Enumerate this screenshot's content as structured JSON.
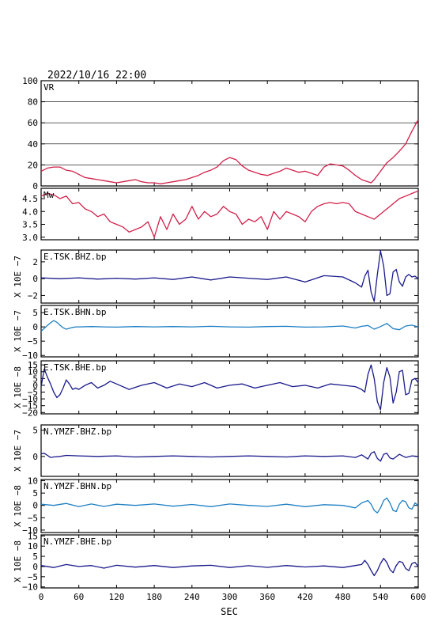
{
  "header": {
    "datetime": "2022/10/16  22:00"
  },
  "x_axis": {
    "label": "SEC",
    "range": [
      0,
      600
    ],
    "ticks": [
      0,
      60,
      120,
      180,
      240,
      300,
      360,
      420,
      480,
      540,
      600
    ],
    "tick_labels": [
      "0",
      "60",
      "120",
      "180",
      "240",
      "300",
      "360",
      "420",
      "480",
      "540",
      "600"
    ]
  },
  "chart_data": [
    {
      "type": "line",
      "panel_label": "VR",
      "exp_label": "",
      "ylim": [
        0,
        100
      ],
      "yticks": [
        0,
        20,
        40,
        60,
        80,
        100
      ],
      "ytick_labels": [
        "0",
        "20",
        "40",
        "60",
        "80",
        "100"
      ],
      "grid_y": [
        20,
        40,
        60,
        80
      ],
      "color": "#d2204a",
      "series": [
        {
          "x": [
            0,
            10,
            20,
            30,
            40,
            50,
            60,
            70,
            80,
            90,
            100,
            110,
            120,
            130,
            140,
            150,
            160,
            170,
            180,
            190,
            200,
            210,
            220,
            230,
            240,
            250,
            260,
            270,
            280,
            290,
            300,
            310,
            320,
            330,
            340,
            350,
            360,
            370,
            380,
            390,
            400,
            410,
            420,
            430,
            440,
            450,
            460,
            470,
            480,
            490,
            500,
            510,
            520,
            525,
            530,
            540,
            550,
            560,
            570,
            580,
            590,
            600
          ],
          "y": [
            14,
            17,
            18,
            18,
            15,
            14,
            11,
            8,
            7,
            6,
            5,
            4,
            3,
            4,
            5,
            6,
            4,
            3,
            3,
            2,
            3,
            4,
            5,
            6,
            8,
            10,
            13,
            15,
            18,
            24,
            27,
            25,
            19,
            15,
            13,
            11,
            10,
            12,
            14,
            17,
            15,
            13,
            14,
            12,
            10,
            18,
            21,
            20,
            19,
            15,
            10,
            6,
            4,
            3,
            6,
            14,
            22,
            27,
            33,
            40,
            52,
            63
          ]
        }
      ]
    },
    {
      "type": "line",
      "panel_label": "Mw",
      "exp_label": "",
      "ylim": [
        2.9,
        4.9
      ],
      "yticks": [
        3.0,
        3.5,
        4.0,
        4.5
      ],
      "ytick_labels": [
        "3.0",
        "3.5",
        "4.0",
        "4.5"
      ],
      "color": "#d2204a",
      "series": [
        {
          "x": [
            0,
            10,
            20,
            30,
            40,
            50,
            60,
            70,
            80,
            90,
            100,
            110,
            120,
            130,
            140,
            150,
            160,
            170,
            180,
            190,
            200,
            210,
            220,
            230,
            240,
            250,
            260,
            270,
            280,
            290,
            300,
            310,
            320,
            330,
            340,
            350,
            360,
            370,
            380,
            390,
            400,
            410,
            420,
            430,
            440,
            450,
            460,
            470,
            480,
            490,
            500,
            510,
            520,
            530,
            540,
            550,
            560,
            570,
            580,
            590,
            600
          ],
          "y": [
            4.6,
            4.7,
            4.65,
            4.5,
            4.6,
            4.3,
            4.35,
            4.1,
            4.0,
            3.8,
            3.9,
            3.6,
            3.5,
            3.4,
            3.2,
            3.3,
            3.4,
            3.6,
            3.0,
            3.8,
            3.3,
            3.9,
            3.5,
            3.7,
            4.2,
            3.7,
            4.0,
            3.8,
            3.9,
            4.2,
            4.0,
            3.9,
            3.5,
            3.7,
            3.6,
            3.8,
            3.3,
            4.0,
            3.7,
            4.0,
            3.9,
            3.8,
            3.6,
            4.0,
            4.2,
            4.3,
            4.35,
            4.3,
            4.35,
            4.3,
            4.0,
            3.9,
            3.8,
            3.7,
            3.9,
            4.1,
            4.3,
            4.5,
            4.6,
            4.7,
            4.8
          ]
        }
      ]
    },
    {
      "type": "line",
      "panel_label": "E.TSK.BHZ.bp",
      "exp_label": "X 10E −7",
      "ylim": [
        -2.9,
        3.4
      ],
      "yticks": [
        -2,
        0,
        2
      ],
      "ytick_labels": [
        "−2",
        "0",
        "2"
      ],
      "color": "#1a1a8c",
      "series": [
        {
          "x": [
            0,
            30,
            60,
            90,
            120,
            150,
            180,
            210,
            240,
            270,
            300,
            330,
            360,
            390,
            420,
            450,
            480,
            500,
            510,
            515,
            520,
            525,
            530,
            535,
            540,
            545,
            550,
            555,
            560,
            565,
            570,
            575,
            580,
            585,
            590,
            595,
            600
          ],
          "y": [
            0.1,
            0.0,
            0.1,
            -0.05,
            0.05,
            -0.05,
            0.1,
            -0.1,
            0.2,
            -0.15,
            0.2,
            0.05,
            -0.1,
            0.2,
            -0.4,
            0.35,
            0.2,
            -0.5,
            -1.0,
            0.3,
            1.0,
            -1.6,
            -2.7,
            0.5,
            3.3,
            1.5,
            -2.0,
            -1.8,
            0.8,
            1.1,
            -0.4,
            -0.9,
            0.2,
            0.5,
            0.2,
            0.3,
            0.0
          ]
        }
      ]
    },
    {
      "type": "line",
      "panel_label": "E.TSK.BHN.bp",
      "exp_label": "X 10E −7",
      "ylim": [
        -10.5,
        7.5
      ],
      "yticks": [
        -10,
        -5,
        0,
        5
      ],
      "ytick_labels": [
        "−10",
        "−5",
        "0",
        "5"
      ],
      "color": "#1e7fc4",
      "series": [
        {
          "x": [
            0,
            5,
            10,
            15,
            20,
            25,
            30,
            35,
            40,
            45,
            50,
            55,
            60,
            80,
            100,
            120,
            150,
            180,
            210,
            240,
            270,
            300,
            330,
            360,
            390,
            420,
            450,
            480,
            500,
            510,
            520,
            530,
            540,
            550,
            560,
            570,
            580,
            590,
            600
          ],
          "y": [
            -1.5,
            -0.5,
            0.5,
            1.4,
            2.2,
            1.6,
            0.6,
            -0.3,
            -0.8,
            -0.5,
            -0.2,
            0.0,
            0.0,
            0.1,
            0.0,
            -0.1,
            0.1,
            0.0,
            0.1,
            0.0,
            0.2,
            0.0,
            -0.1,
            0.1,
            0.2,
            -0.1,
            0.0,
            0.3,
            -0.4,
            0.2,
            0.5,
            -0.8,
            0.1,
            1.2,
            -0.6,
            -1.0,
            0.3,
            0.6,
            0.0
          ]
        }
      ]
    },
    {
      "type": "line",
      "panel_label": "E.TSK.BHE.bp",
      "exp_label": "X 10E −8",
      "ylim": [
        -21,
        18
      ],
      "yticks": [
        -20,
        -15,
        -10,
        -5,
        0,
        5,
        10,
        15
      ],
      "ytick_labels": [
        "−20",
        "−15",
        "−10",
        "−5",
        "0",
        "5",
        "10",
        "15"
      ],
      "color": "#1a1a8c",
      "series": [
        {
          "x": [
            0,
            5,
            10,
            15,
            20,
            25,
            30,
            35,
            40,
            45,
            50,
            55,
            60,
            70,
            80,
            90,
            100,
            110,
            120,
            140,
            160,
            180,
            200,
            220,
            240,
            260,
            280,
            300,
            320,
            340,
            360,
            380,
            400,
            420,
            440,
            460,
            480,
            500,
            510,
            515,
            520,
            525,
            530,
            535,
            540,
            545,
            550,
            555,
            560,
            565,
            570,
            575,
            580,
            585,
            590,
            595,
            600
          ],
          "y": [
            -1,
            12,
            6,
            1,
            -5,
            -9,
            -7,
            -2,
            4,
            1,
            -3,
            -2,
            -3,
            0,
            2,
            -2,
            0,
            3,
            1,
            -3,
            0,
            2,
            -2,
            1,
            -1,
            2,
            -2,
            0,
            1,
            -2,
            0,
            2,
            -1,
            0,
            -2,
            1,
            0,
            -1,
            -3,
            -5,
            8,
            15,
            5,
            -12,
            -18,
            2,
            13,
            6,
            -13,
            -5,
            10,
            11,
            -7,
            -6,
            4,
            5,
            2
          ]
        }
      ]
    },
    {
      "type": "line",
      "panel_label": "N.YMZF.BHZ.bp",
      "exp_label": "X 10E −7",
      "ylim": [
        -3.8,
        6.0
      ],
      "yticks": [
        0,
        5
      ],
      "ytick_labels": [
        "0",
        "5"
      ],
      "color": "#1a1a8c",
      "series": [
        {
          "x": [
            0,
            5,
            10,
            15,
            20,
            30,
            40,
            60,
            90,
            120,
            150,
            180,
            210,
            240,
            270,
            300,
            330,
            360,
            390,
            420,
            450,
            480,
            500,
            510,
            520,
            525,
            530,
            535,
            540,
            545,
            550,
            555,
            560,
            570,
            580,
            590,
            600
          ],
          "y": [
            0.5,
            0.6,
            0.2,
            -0.2,
            -0.1,
            0.0,
            0.2,
            0.1,
            0.0,
            0.1,
            -0.1,
            0.0,
            0.1,
            0.0,
            -0.1,
            0.0,
            0.1,
            0.0,
            -0.1,
            0.1,
            0.0,
            0.1,
            -0.2,
            0.3,
            -0.5,
            0.6,
            0.9,
            -0.4,
            -0.9,
            0.4,
            0.6,
            -0.3,
            -0.5,
            0.4,
            -0.2,
            0.1,
            0.0
          ]
        }
      ]
    },
    {
      "type": "line",
      "panel_label": "N.YMZF.BHN.bp",
      "exp_label": "X 10E −8",
      "ylim": [
        -11,
        10.5
      ],
      "yticks": [
        -10,
        -5,
        0,
        5,
        10
      ],
      "ytick_labels": [
        "−10",
        "−5",
        "0",
        "5",
        "10"
      ],
      "color": "#1e7fc4",
      "series": [
        {
          "x": [
            0,
            20,
            40,
            60,
            80,
            100,
            120,
            150,
            180,
            210,
            240,
            270,
            300,
            330,
            360,
            390,
            420,
            450,
            480,
            500,
            510,
            520,
            525,
            530,
            535,
            540,
            545,
            550,
            555,
            560,
            565,
            570,
            575,
            580,
            585,
            590,
            595,
            600
          ],
          "y": [
            0.5,
            0.0,
            0.8,
            -0.5,
            0.6,
            -0.4,
            0.5,
            0.0,
            0.6,
            -0.3,
            0.4,
            -0.5,
            0.6,
            0.0,
            -0.4,
            0.5,
            -0.5,
            0.3,
            0.0,
            -1.0,
            1.0,
            2.0,
            0.5,
            -2.0,
            -3.0,
            -1.0,
            2.0,
            3.0,
            1.0,
            -2.0,
            -2.5,
            0.5,
            2.0,
            1.5,
            -1.0,
            -1.5,
            1.0,
            0.0
          ]
        }
      ]
    },
    {
      "type": "line",
      "panel_label": "N.YMZF.BHE.bp",
      "exp_label": "X 10E −8",
      "ylim": [
        -10.5,
        15.5
      ],
      "yticks": [
        -10,
        -5,
        0,
        5,
        10,
        15
      ],
      "ytick_labels": [
        "−10",
        "−5",
        "0",
        "5",
        "10",
        "15"
      ],
      "color": "#1a1a8c",
      "series": [
        {
          "x": [
            0,
            20,
            40,
            60,
            80,
            100,
            120,
            150,
            180,
            210,
            240,
            270,
            300,
            330,
            360,
            390,
            420,
            450,
            480,
            500,
            510,
            515,
            520,
            525,
            530,
            535,
            540,
            545,
            550,
            555,
            560,
            565,
            570,
            575,
            580,
            585,
            590,
            595,
            600
          ],
          "y": [
            0.5,
            -0.5,
            1.0,
            0.0,
            0.5,
            -0.8,
            0.6,
            -0.3,
            0.5,
            -0.5,
            0.3,
            0.6,
            -0.5,
            0.4,
            -0.4,
            0.5,
            -0.2,
            0.3,
            -0.5,
            0.5,
            1.0,
            3.0,
            1.0,
            -2.0,
            -4.5,
            -2.0,
            1.5,
            4.0,
            2.0,
            -1.5,
            -3.0,
            0.5,
            2.5,
            2.0,
            -1.0,
            -2.0,
            1.5,
            2.0,
            0.0
          ]
        }
      ]
    }
  ]
}
